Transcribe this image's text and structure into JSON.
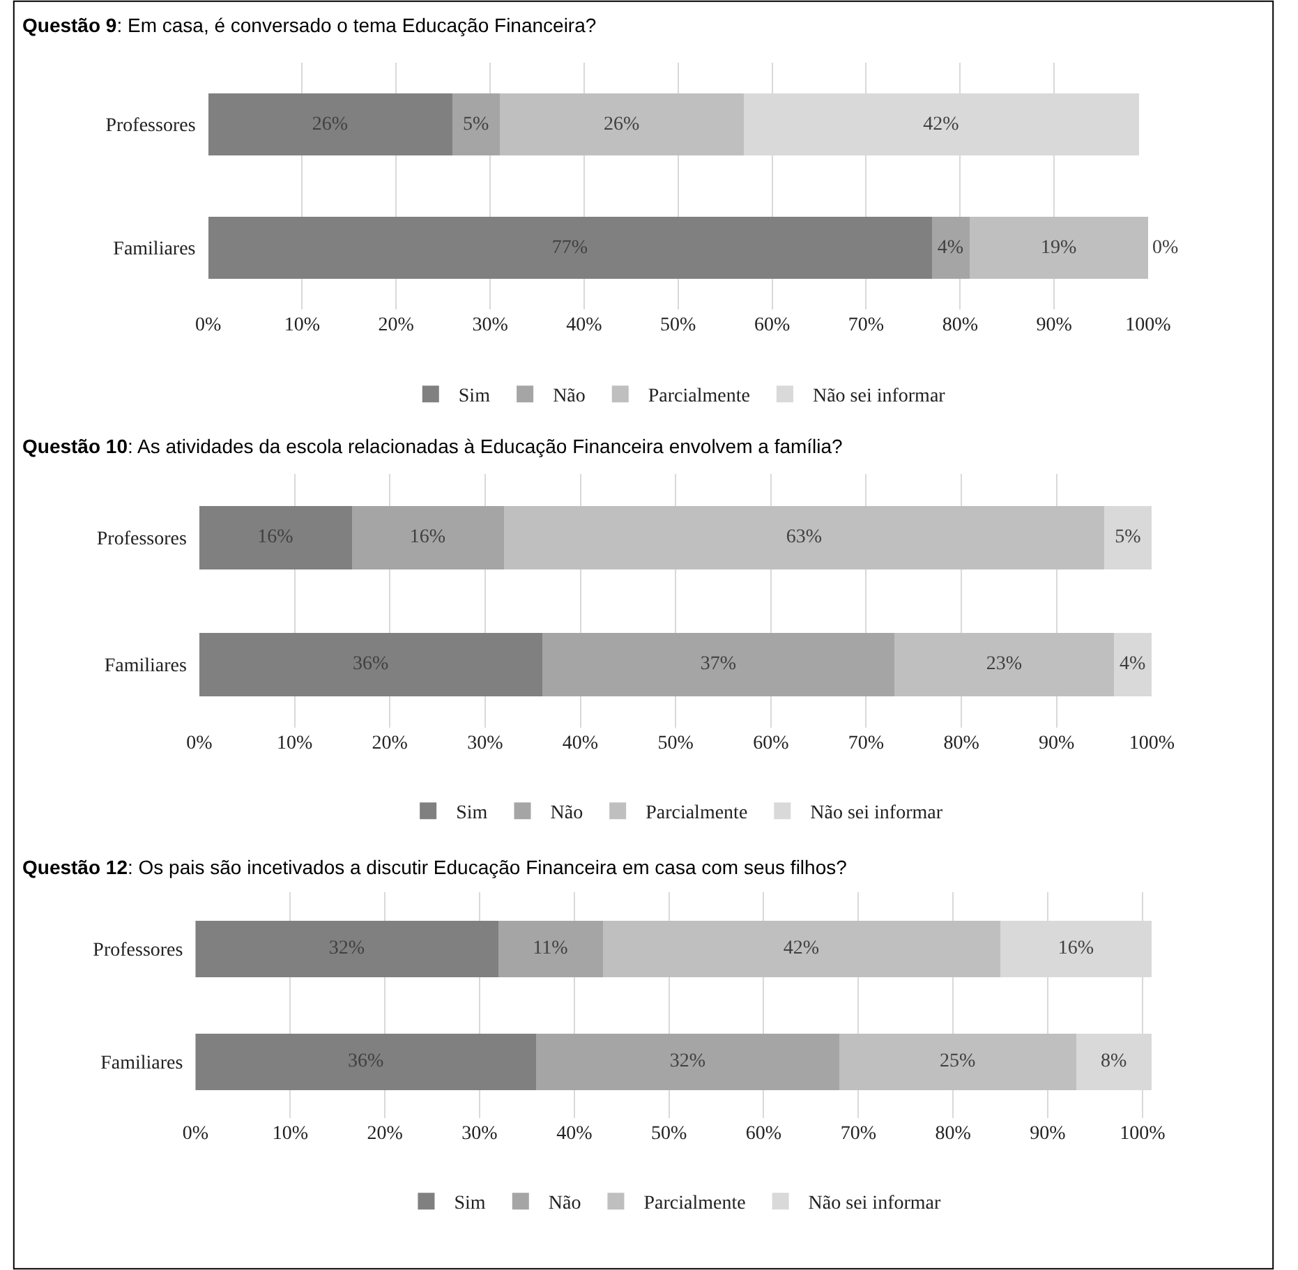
{
  "chart_data": [
    {
      "type": "bar",
      "orientation": "horizontal",
      "stacked": true,
      "title": "Questão 9: Em casa, é conversado o tema Educação Financeira?",
      "categories": [
        "Professores",
        "Familiares"
      ],
      "grid": "x",
      "legend": "bottom",
      "xlim": [
        0,
        100
      ],
      "xticks": [
        {
          "value": 0,
          "label": "0%"
        },
        {
          "value": 10,
          "label": "10%"
        },
        {
          "value": 20,
          "label": "20%"
        },
        {
          "value": 30,
          "label": "30%"
        },
        {
          "value": 40,
          "label": "40%"
        },
        {
          "value": 50,
          "label": "50%"
        },
        {
          "value": 60,
          "label": "60%"
        },
        {
          "value": 70,
          "label": "70%"
        },
        {
          "value": 80,
          "label": "80%"
        },
        {
          "value": 90,
          "label": "90%"
        },
        {
          "value": 100,
          "label": "100%"
        }
      ],
      "series": [
        {
          "name": "Sim",
          "color": "#808080",
          "values": [
            26,
            77
          ],
          "value_labels": [
            "26%",
            "77%"
          ]
        },
        {
          "name": "Não",
          "color": "#a5a5a5",
          "values": [
            5,
            4
          ],
          "value_labels": [
            "5%",
            "4%"
          ]
        },
        {
          "name": "Parcialmente",
          "color": "#bfbfbf",
          "values": [
            26,
            19
          ],
          "value_labels": [
            "26%",
            "19%"
          ]
        },
        {
          "name": "Não sei informar",
          "color": "#d9d9d9",
          "values": [
            42,
            0
          ],
          "value_labels": [
            "42%",
            "0%"
          ]
        }
      ]
    },
    {
      "type": "bar",
      "orientation": "horizontal",
      "stacked": true,
      "title": "Questão 10: As atividades da escola relacionadas à Educação Financeira envolvem a família?",
      "categories": [
        "Professores",
        "Familiares"
      ],
      "grid": "x",
      "legend": "bottom",
      "xlim": [
        0,
        100
      ],
      "xticks": [
        {
          "value": 0,
          "label": "0%"
        },
        {
          "value": 10,
          "label": "10%"
        },
        {
          "value": 20,
          "label": "20%"
        },
        {
          "value": 30,
          "label": "30%"
        },
        {
          "value": 40,
          "label": "40%"
        },
        {
          "value": 50,
          "label": "50%"
        },
        {
          "value": 60,
          "label": "60%"
        },
        {
          "value": 70,
          "label": "70%"
        },
        {
          "value": 80,
          "label": "80%"
        },
        {
          "value": 90,
          "label": "90%"
        },
        {
          "value": 100,
          "label": "100%"
        }
      ],
      "series": [
        {
          "name": "Sim",
          "color": "#808080",
          "values": [
            16,
            36
          ],
          "value_labels": [
            "16%",
            "36%"
          ]
        },
        {
          "name": "Não",
          "color": "#a5a5a5",
          "values": [
            16,
            37
          ],
          "value_labels": [
            "16%",
            "37%"
          ]
        },
        {
          "name": "Parcialmente",
          "color": "#bfbfbf",
          "values": [
            63,
            23
          ],
          "value_labels": [
            "63%",
            "23%"
          ]
        },
        {
          "name": "Não sei informar",
          "color": "#d9d9d9",
          "values": [
            5,
            4
          ],
          "value_labels": [
            "5%",
            "4%"
          ]
        }
      ]
    },
    {
      "type": "bar",
      "orientation": "horizontal",
      "stacked": true,
      "title": "Questão 12: Os pais são incetivados a discutir Educação Financeira em casa com seus filhos?",
      "categories": [
        "Professores",
        "Familiares"
      ],
      "grid": "x",
      "legend": "bottom",
      "xlim": [
        0,
        101
      ],
      "xticks": [
        {
          "value": 0,
          "label": "0%"
        },
        {
          "value": 10,
          "label": "10%"
        },
        {
          "value": 20,
          "label": "20%"
        },
        {
          "value": 30,
          "label": "30%"
        },
        {
          "value": 40,
          "label": "40%"
        },
        {
          "value": 50,
          "label": "50%"
        },
        {
          "value": 60,
          "label": "60%"
        },
        {
          "value": 70,
          "label": "70%"
        },
        {
          "value": 80,
          "label": "80%"
        },
        {
          "value": 90,
          "label": "90%"
        },
        {
          "value": 100,
          "label": "100%"
        }
      ],
      "series": [
        {
          "name": "Sim",
          "color": "#808080",
          "values": [
            32,
            36
          ],
          "value_labels": [
            "32%",
            "36%"
          ]
        },
        {
          "name": "Não",
          "color": "#a5a5a5",
          "values": [
            11,
            32
          ],
          "value_labels": [
            "11%",
            "32%"
          ]
        },
        {
          "name": "Parcialmente",
          "color": "#bfbfbf",
          "values": [
            42,
            25
          ],
          "value_labels": [
            "42%",
            "25%"
          ]
        },
        {
          "name": "Não sei informar",
          "color": "#d9d9d9",
          "values": [
            16,
            8
          ],
          "value_labels": [
            "16%",
            "8%"
          ]
        }
      ]
    }
  ]
}
